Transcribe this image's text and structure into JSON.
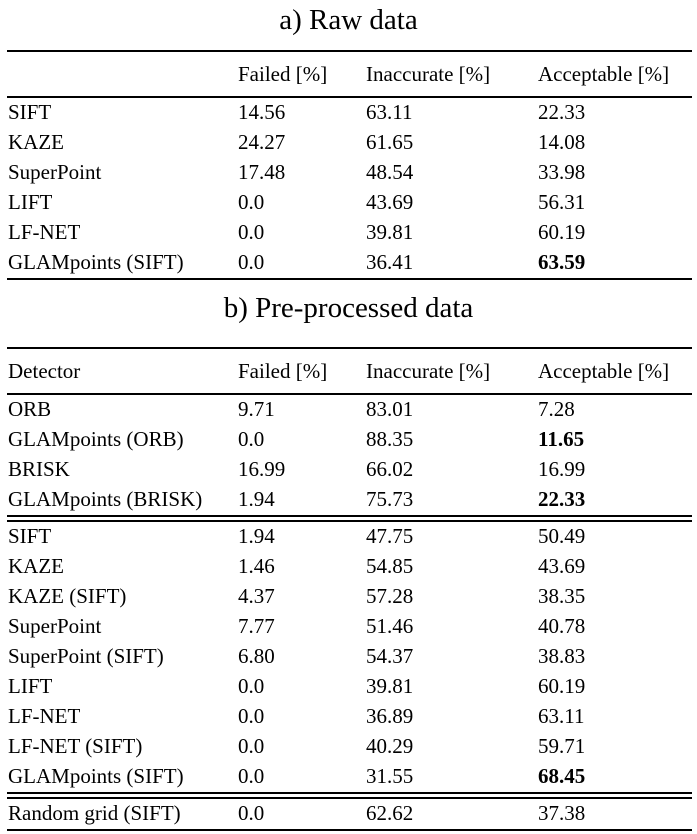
{
  "page": {
    "background": "#ffffff",
    "text_color": "#000000",
    "rule_color": "#000000"
  },
  "tables": [
    {
      "title": "a) Raw data",
      "columns": [
        "",
        "Failed [%]",
        "Inaccurate [%]",
        "Acceptable [%]"
      ],
      "bottom_rule": "single",
      "groups": [
        {
          "rows": [
            {
              "cells": [
                "SIFT",
                "14.56",
                "63.11",
                "22.33"
              ],
              "bold": []
            },
            {
              "cells": [
                "KAZE",
                "24.27",
                "61.65",
                "14.08"
              ],
              "bold": []
            },
            {
              "cells": [
                "SuperPoint",
                "17.48",
                "48.54",
                "33.98"
              ],
              "bold": []
            },
            {
              "cells": [
                "LIFT",
                "0.0",
                "43.69",
                "56.31"
              ],
              "bold": []
            },
            {
              "cells": [
                "LF-NET",
                "0.0",
                "39.81",
                "60.19"
              ],
              "bold": []
            },
            {
              "cells": [
                "GLAMpoints (SIFT)",
                "0.0",
                "36.41",
                "63.59"
              ],
              "bold": [
                3
              ]
            }
          ]
        }
      ]
    },
    {
      "title": "b) Pre-processed data",
      "columns": [
        "Detector",
        "Failed [%]",
        "Inaccurate [%]",
        "Acceptable [%]"
      ],
      "bottom_rule": "double",
      "groups": [
        {
          "rows": [
            {
              "cells": [
                "ORB",
                "9.71",
                "83.01",
                "7.28"
              ],
              "bold": []
            },
            {
              "cells": [
                "GLAMpoints (ORB)",
                "0.0",
                "88.35",
                "11.65"
              ],
              "bold": [
                3
              ]
            },
            {
              "cells": [
                "BRISK",
                "16.99",
                "66.02",
                "16.99"
              ],
              "bold": []
            },
            {
              "cells": [
                "GLAMpoints (BRISK)",
                "1.94",
                "75.73",
                "22.33"
              ],
              "bold": [
                3
              ]
            }
          ]
        },
        {
          "rows": [
            {
              "cells": [
                "SIFT",
                "1.94",
                "47.75",
                "50.49"
              ],
              "bold": []
            },
            {
              "cells": [
                "KAZE",
                "1.46",
                "54.85",
                "43.69"
              ],
              "bold": []
            },
            {
              "cells": [
                "KAZE (SIFT)",
                "4.37",
                "57.28",
                "38.35"
              ],
              "bold": []
            },
            {
              "cells": [
                "SuperPoint",
                "7.77",
                "51.46",
                "40.78"
              ],
              "bold": []
            },
            {
              "cells": [
                "SuperPoint (SIFT)",
                "6.80",
                "54.37",
                "38.83"
              ],
              "bold": []
            },
            {
              "cells": [
                "LIFT",
                "0.0",
                "39.81",
                "60.19"
              ],
              "bold": []
            },
            {
              "cells": [
                "LF-NET",
                "0.0",
                "36.89",
                "63.11"
              ],
              "bold": []
            },
            {
              "cells": [
                "LF-NET (SIFT)",
                "0.0",
                "40.29",
                "59.71"
              ],
              "bold": []
            },
            {
              "cells": [
                "GLAMpoints (SIFT)",
                "0.0",
                "31.55",
                "68.45"
              ],
              "bold": [
                3
              ]
            }
          ]
        },
        {
          "rows": [
            {
              "cells": [
                "Random grid (SIFT)",
                "0.0",
                "62.62",
                "37.38"
              ],
              "bold": []
            }
          ]
        }
      ]
    }
  ]
}
